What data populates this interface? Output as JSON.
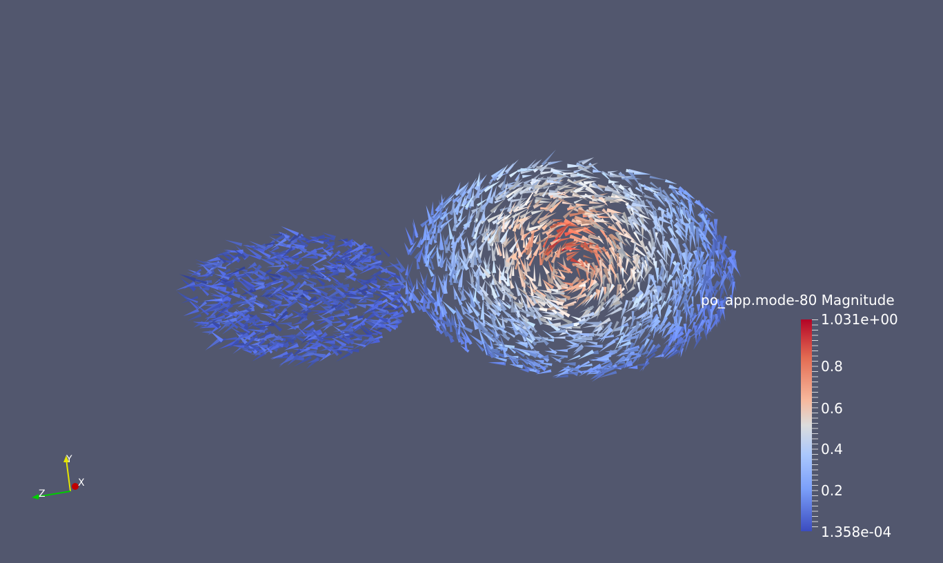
{
  "scalar_bar": {
    "title": "po_app.mode-80 Magnitude",
    "max_label": "1.031e+00",
    "min_label": "1.358e-04",
    "ticks": [
      "0.8",
      "0.6",
      "0.4",
      "0.2"
    ],
    "range": [
      0.0001358,
      1.031
    ],
    "colormap": [
      "#3b4cc0",
      "#7b9ff9",
      "#aac7fd",
      "#dcdddd",
      "#f7b89c",
      "#e36b52",
      "#b40426"
    ]
  },
  "orientation_axes": {
    "x_label": "X",
    "y_label": "Y",
    "z_label": "Z",
    "x_color": "#c00000",
    "y_color": "#e6e600",
    "z_color": "#00cc00"
  },
  "background_color": "#52576e"
}
